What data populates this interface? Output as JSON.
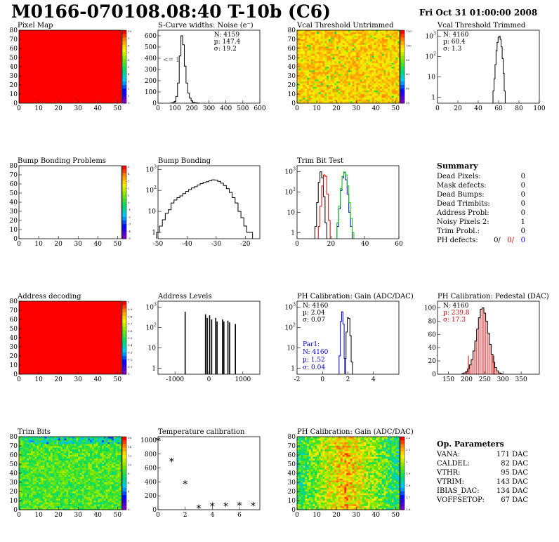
{
  "header": {
    "title": "M0166-070108.08:40 T-10b (C6)",
    "date": "Fri Oct 31 01:00:00 2008"
  },
  "summary": {
    "heading": "Summary",
    "rows": [
      {
        "label": "Dead Pixels:",
        "value": "0"
      },
      {
        "label": "Mask defects:",
        "value": "0"
      },
      {
        "label": "Dead Bumps:",
        "value": "0"
      },
      {
        "label": "Dead Trimbits:",
        "value": "0"
      },
      {
        "label": "Address Probl:",
        "value": "0"
      },
      {
        "label": "Noisy Pixels 2:",
        "value": "1"
      },
      {
        "label": "Trim Probl.:",
        "value": "0"
      }
    ],
    "ph_label": "PH defects:",
    "ph_values": [
      {
        "text": "0/",
        "color": "#000000"
      },
      {
        "text": "0/",
        "color": "#e00000"
      },
      {
        "text": "0",
        "color": "#0000e0"
      }
    ]
  },
  "op_params": {
    "heading": "Op. Parameters",
    "rows": [
      {
        "label": "VANA:",
        "value": "171 DAC"
      },
      {
        "label": "CALDEL:",
        "value": "82 DAC"
      },
      {
        "label": "VTHR:",
        "value": "95 DAC"
      },
      {
        "label": "VTRIM:",
        "value": "143 DAC"
      },
      {
        "label": "IBIAS_DAC:",
        "value": "134 DAC"
      },
      {
        "label": "VOFFSETOP:",
        "value": "67 DAC"
      }
    ]
  },
  "colors": {
    "full": "#ff0000",
    "blue": "#0000cc",
    "red": "#dd0000",
    "green": "#00cc00"
  },
  "chart_data": [
    {
      "id": "pixel-map",
      "type": "heatmap",
      "title": "Pixel Map",
      "xlim": [
        0,
        52
      ],
      "ylim": [
        0,
        80
      ],
      "xticks": [
        0,
        10,
        20,
        30,
        40,
        50
      ],
      "yticks": [
        0,
        10,
        20,
        30,
        40,
        50,
        60,
        70,
        80
      ],
      "fill": "uniform-max",
      "zticks": [
        "10",
        "9",
        "8",
        "7",
        "6",
        "5",
        "4",
        "3",
        "2",
        "1",
        "0"
      ]
    },
    {
      "id": "scurve-noise",
      "type": "histogram",
      "title": "S-Curve widths: Noise (e⁻)",
      "xlim": [
        0,
        600
      ],
      "xticks": [
        0,
        100,
        200,
        300,
        400,
        500,
        600
      ],
      "ylim": [
        0,
        650
      ],
      "yticks": [
        0,
        100,
        200,
        300,
        400,
        500,
        600
      ],
      "stats": {
        "N": "4159",
        "mean": "147.4",
        "sigma": "19.2"
      },
      "note": "<= 1",
      "x": [
        80,
        90,
        100,
        110,
        120,
        130,
        140,
        150,
        160,
        170,
        180,
        190,
        200,
        210,
        220,
        230,
        240
      ],
      "values": [
        2,
        5,
        15,
        60,
        180,
        420,
        600,
        520,
        330,
        180,
        90,
        45,
        20,
        8,
        4,
        2,
        1
      ]
    },
    {
      "id": "vcal-untrimmed",
      "type": "heatmap",
      "title": "Vcal Threshold Untrimmed",
      "xlim": [
        0,
        52
      ],
      "ylim": [
        0,
        80
      ],
      "xticks": [
        0,
        10,
        20,
        30,
        40,
        50
      ],
      "yticks": [
        0,
        10,
        20,
        30,
        40,
        50,
        60,
        70,
        80
      ],
      "fill": "noise-yellow",
      "zticks": [
        "120",
        "100",
        "80",
        "60",
        "40",
        "20"
      ]
    },
    {
      "id": "vcal-trimmed",
      "type": "histogram",
      "title": "Vcal Threshold Trimmed",
      "log": true,
      "xlim": [
        0,
        100
      ],
      "xticks": [
        0,
        20,
        40,
        60,
        80,
        100
      ],
      "ylim": [
        0.5,
        2000
      ],
      "stats": {
        "N": "4160",
        "mean": "60.4",
        "sigma": "1.3"
      },
      "x": [
        55,
        56,
        57,
        58,
        59,
        60,
        61,
        62,
        63,
        64,
        65,
        66
      ],
      "values": [
        2,
        8,
        40,
        200,
        500,
        900,
        1000,
        700,
        300,
        80,
        15,
        2
      ]
    },
    {
      "id": "bump-problems",
      "type": "heatmap",
      "title": "Bump Bonding Problems",
      "xlim": [
        0,
        52
      ],
      "ylim": [
        0,
        80
      ],
      "xticks": [
        0,
        10,
        20,
        30,
        40,
        50
      ],
      "yticks": [
        0,
        10,
        20,
        30,
        40,
        50,
        60,
        70,
        80
      ],
      "fill": "empty",
      "zticks": [
        "5",
        "4",
        "3",
        "2",
        "1",
        "0",
        "-1",
        "-2",
        "-3",
        "-4",
        "-5"
      ]
    },
    {
      "id": "bump-bonding",
      "type": "histogram",
      "title": "Bump Bonding",
      "log": true,
      "xlim": [
        -50,
        -15
      ],
      "xticks": [
        -50,
        -40,
        -30,
        -20
      ],
      "ylim": [
        0.5,
        1500
      ],
      "x": [
        -50,
        -49,
        -48,
        -47,
        -46,
        -45,
        -44,
        -43,
        -42,
        -41,
        -40,
        -39,
        -38,
        -37,
        -36,
        -35,
        -34,
        -33,
        -32,
        -31,
        -30,
        -29,
        -28,
        -27,
        -26,
        -25,
        -24,
        -23,
        -22,
        -21,
        -20,
        -19,
        -18
      ],
      "values": [
        1,
        2,
        4,
        8,
        12,
        25,
        35,
        45,
        55,
        70,
        90,
        110,
        130,
        150,
        180,
        210,
        240,
        260,
        290,
        320,
        310,
        270,
        220,
        170,
        120,
        80,
        45,
        25,
        10,
        5,
        2,
        1,
        1
      ]
    },
    {
      "id": "trim-bit-test",
      "type": "histogram",
      "title": "Trim Bit Test",
      "log": true,
      "xlim": [
        0,
        60
      ],
      "xticks": [
        0,
        20,
        40,
        60
      ],
      "ylim": [
        0.5,
        2000
      ],
      "series": [
        {
          "color": "#000000",
          "x": [
            11,
            12,
            13,
            14,
            15,
            16,
            17
          ],
          "values": [
            2,
            30,
            300,
            1000,
            500,
            60,
            3
          ]
        },
        {
          "color": "#dd0000",
          "x": [
            13,
            14,
            15,
            16,
            17,
            18,
            19
          ],
          "values": [
            2,
            20,
            200,
            700,
            600,
            80,
            4
          ]
        },
        {
          "color": "#0000cc",
          "x": [
            24,
            25,
            26,
            27,
            28,
            29,
            30,
            31,
            32
          ],
          "values": [
            2,
            15,
            120,
            500,
            900,
            400,
            80,
            10,
            2
          ]
        },
        {
          "color": "#00cc00",
          "x": [
            24,
            25,
            26,
            27,
            28,
            29,
            30,
            31,
            32,
            33
          ],
          "values": [
            3,
            20,
            150,
            600,
            1000,
            700,
            200,
            30,
            5,
            1
          ]
        }
      ]
    },
    {
      "id": "address-decoding",
      "type": "heatmap",
      "title": "Address decoding",
      "xlim": [
        0,
        52
      ],
      "ylim": [
        0,
        80
      ],
      "xticks": [
        0,
        10,
        20,
        30,
        40,
        50
      ],
      "yticks": [
        0,
        10,
        20,
        30,
        40,
        50,
        60,
        70,
        80
      ],
      "fill": "uniform-max",
      "zticks": [
        "1",
        "0.9",
        "0.8",
        "0.7",
        "0.6",
        "0.5",
        "0.4",
        "0.3",
        "0.2",
        "0.1",
        "0"
      ]
    },
    {
      "id": "address-levels",
      "type": "histogram",
      "title": "Address Levels",
      "log": true,
      "xlim": [
        -1500,
        1500
      ],
      "xticks": [
        -1000,
        0,
        1000
      ],
      "ylim": [
        0.5,
        2000
      ],
      "x": [
        -700,
        -100,
        -50,
        20,
        80,
        200,
        240,
        400,
        440,
        560,
        610,
        780
      ],
      "values": [
        600,
        450,
        300,
        400,
        250,
        300,
        200,
        250,
        200,
        220,
        180,
        150
      ]
    },
    {
      "id": "ph-gain",
      "type": "histogram",
      "title": "PH Calibration: Gain (ADC/DAC)",
      "log": true,
      "xlim": [
        -2,
        6
      ],
      "xticks": [
        -2,
        0,
        2,
        4
      ],
      "ylim": [
        0.5,
        2000
      ],
      "stats": {
        "N": "4160",
        "mean": "2.04",
        "sigma": "0.07"
      },
      "stats2": {
        "label": "Par1:",
        "N": "4160",
        "mean": "1.52",
        "sigma": "0.04"
      },
      "series": [
        {
          "color": "#000000",
          "x": [
            1.8,
            1.9,
            2.0,
            2.1,
            2.2,
            2.3
          ],
          "values": [
            3,
            60,
            300,
            280,
            40,
            2
          ]
        },
        {
          "color": "#0000cc",
          "x": [
            1.35,
            1.45,
            1.55,
            1.65,
            1.75
          ],
          "values": [
            4,
            200,
            600,
            150,
            3
          ]
        }
      ]
    },
    {
      "id": "ph-pedestal",
      "type": "histogram",
      "title": "PH Calibration: Pedestal (DAC)",
      "xlim": [
        120,
        400
      ],
      "xticks": [
        150,
        200,
        250,
        300,
        350
      ],
      "ylim": [
        0,
        110
      ],
      "yticks": [
        0,
        20,
        40,
        60,
        80,
        100
      ],
      "stats": {
        "N": "4160",
        "mean": "239.8",
        "sigma": "17.3"
      },
      "x": [
        190,
        195,
        200,
        205,
        210,
        215,
        220,
        225,
        230,
        235,
        240,
        245,
        250,
        255,
        260,
        265,
        270,
        275,
        280,
        285,
        290,
        295
      ],
      "values": [
        1,
        2,
        4,
        8,
        14,
        22,
        35,
        50,
        68,
        85,
        98,
        100,
        92,
        80,
        62,
        45,
        30,
        18,
        10,
        5,
        2,
        1
      ],
      "markers": [
        205,
        275
      ]
    },
    {
      "id": "trim-bits",
      "type": "heatmap",
      "title": "Trim Bits",
      "xlim": [
        0,
        52
      ],
      "ylim": [
        0,
        80
      ],
      "xticks": [
        0,
        10,
        20,
        30,
        40,
        50
      ],
      "yticks": [
        0,
        10,
        20,
        30,
        40,
        50,
        60,
        70,
        80
      ],
      "fill": "noise-green",
      "zticks": [
        "16",
        "14",
        "12",
        "10",
        "8",
        "6",
        "4",
        "2",
        "0"
      ]
    },
    {
      "id": "temperature-calibration",
      "type": "scatter",
      "title": "Temperature calibration",
      "xlim": [
        0,
        7.5
      ],
      "xticks": [
        0,
        2,
        4,
        6
      ],
      "ylim": [
        0,
        1050
      ],
      "yticks": [
        0,
        200,
        400,
        600,
        800,
        1000
      ],
      "x": [
        0,
        1,
        2,
        3,
        4,
        5,
        6,
        7
      ],
      "values": [
        1000,
        700,
        380,
        30,
        60,
        60,
        70,
        65
      ]
    },
    {
      "id": "ph-gain-map",
      "type": "heatmap",
      "title": "PH Calibration: Gain (ADC/DAC)",
      "xlim": [
        0,
        52
      ],
      "ylim": [
        0,
        80
      ],
      "xticks": [
        0,
        10,
        20,
        30,
        40,
        50
      ],
      "yticks": [
        0,
        10,
        20,
        30,
        40,
        50,
        60,
        70,
        80
      ],
      "fill": "noise-orange",
      "zticks": [
        "2.2",
        "2.1",
        "2",
        "1.9",
        "1.8",
        "1.7",
        "1.6"
      ]
    }
  ]
}
